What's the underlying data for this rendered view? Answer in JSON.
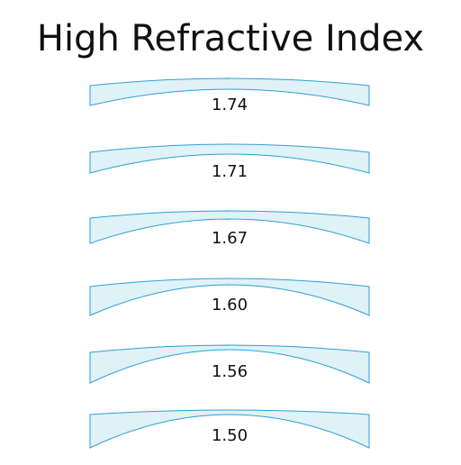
{
  "title": "High Refractive Index",
  "lenses": [
    {
      "label": "1.74"
    },
    {
      "label": "1.71"
    },
    {
      "label": "1.67"
    },
    {
      "label": "1.60"
    },
    {
      "label": "1.56"
    },
    {
      "label": "1.50"
    }
  ]
}
